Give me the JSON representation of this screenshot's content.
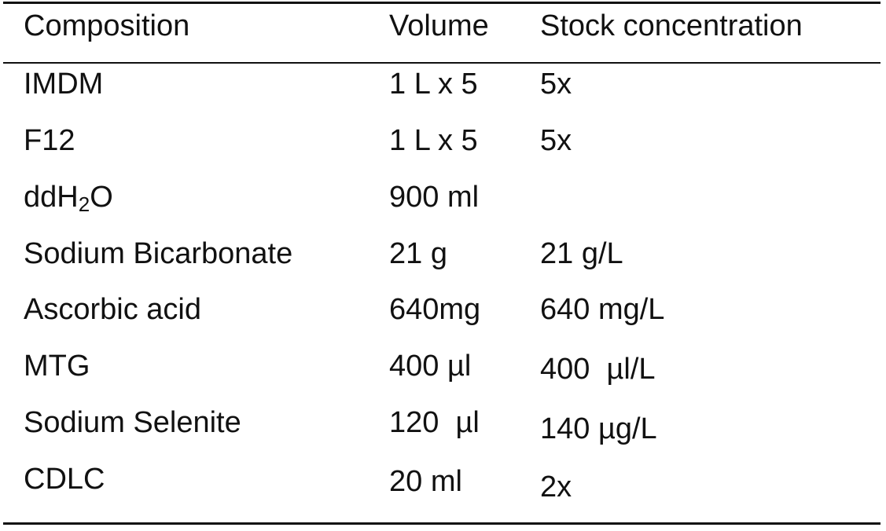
{
  "table": {
    "headers": [
      "Composition",
      "Volume",
      "Stock concentration"
    ],
    "rows": [
      {
        "composition": "IMDM",
        "volume": "1 L x 5",
        "stock": "5x"
      },
      {
        "composition": "F12",
        "volume": "1 L x 5",
        "stock": "5x"
      },
      {
        "composition_prefix": "ddH",
        "composition_sub": "2",
        "composition_suffix": "O",
        "volume": "900 ml",
        "stock": ""
      },
      {
        "composition": "Sodium Bicarbonate",
        "volume": "21 g",
        "stock": "21 g/L"
      },
      {
        "composition": "Ascorbic acid",
        "volume": "640mg",
        "stock": "640 mg/L"
      },
      {
        "composition": "MTG",
        "volume": "400 µl",
        "stock": "400  µl/L"
      },
      {
        "composition": "Sodium Selenite",
        "volume": "120  µl",
        "stock": "140 µg/L"
      },
      {
        "composition": "CDLC",
        "volume": "20 ml",
        "stock": "2x"
      }
    ]
  }
}
